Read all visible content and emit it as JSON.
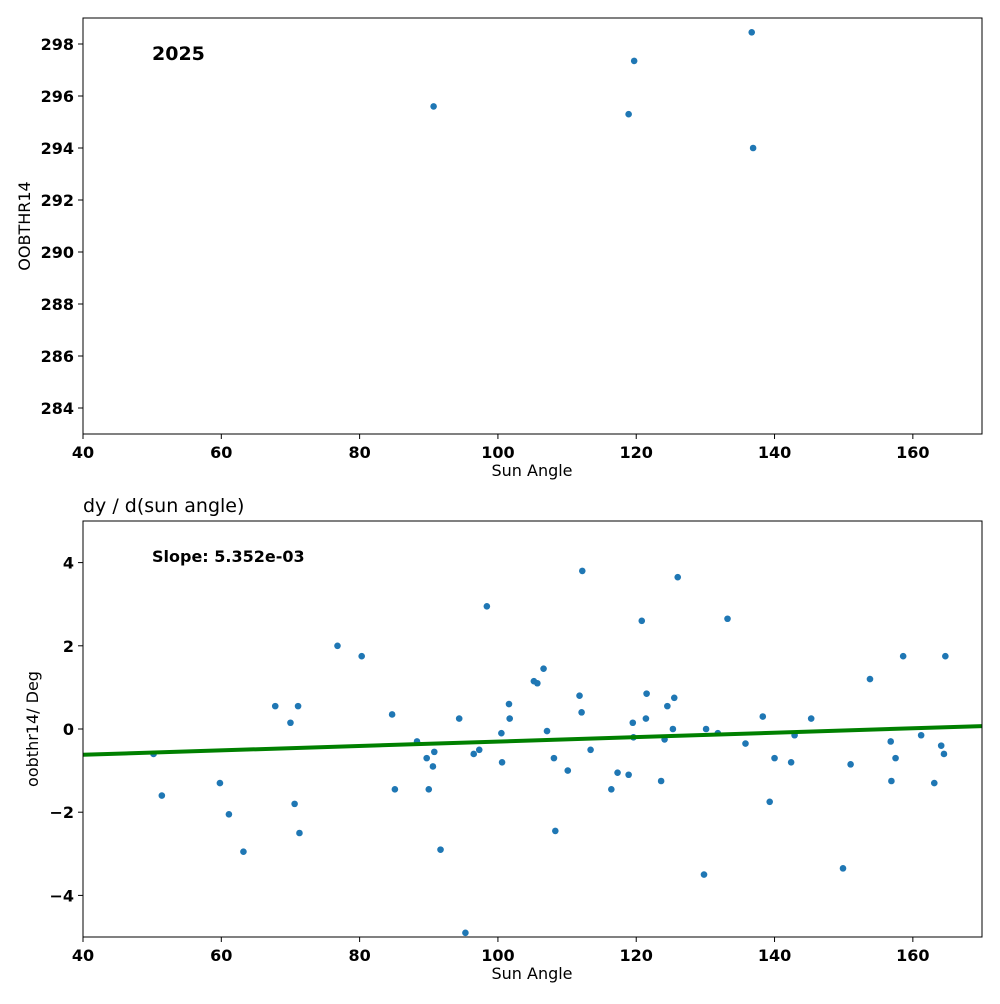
{
  "chart_data": [
    {
      "type": "scatter",
      "title": "",
      "xlabel": "Sun Angle",
      "ylabel": "OOBTHR14",
      "xlim": [
        40,
        170
      ],
      "ylim": [
        283,
        299
      ],
      "xticks": [
        40,
        60,
        80,
        100,
        120,
        140,
        160
      ],
      "yticks": [
        284,
        286,
        288,
        290,
        292,
        294,
        296,
        298
      ],
      "annotation": "2025",
      "marker_color": "#1f77b4",
      "points": [
        {
          "x": 90.7,
          "y": 295.6
        },
        {
          "x": 118.9,
          "y": 295.3
        },
        {
          "x": 119.7,
          "y": 297.35
        },
        {
          "x": 136.7,
          "y": 298.45
        },
        {
          "x": 136.9,
          "y": 294.0
        }
      ]
    },
    {
      "type": "scatter",
      "title": "dy / d(sun angle)",
      "xlabel": "Sun Angle",
      "ylabel": "oobthr14/ Deg",
      "xlim": [
        40,
        170
      ],
      "ylim": [
        -5,
        5
      ],
      "xticks": [
        40,
        60,
        80,
        100,
        120,
        140,
        160
      ],
      "yticks": [
        -4,
        -2,
        0,
        2,
        4
      ],
      "annotation": "Slope: 5.352e-03",
      "marker_color": "#1f77b4",
      "fit_line": {
        "color": "#008000",
        "x": [
          40,
          170
        ],
        "y": [
          -0.62,
          0.07
        ]
      },
      "points": [
        {
          "x": 50.2,
          "y": -0.6
        },
        {
          "x": 51.4,
          "y": -1.6
        },
        {
          "x": 59.8,
          "y": -1.3
        },
        {
          "x": 61.1,
          "y": -2.05
        },
        {
          "x": 63.2,
          "y": -2.95
        },
        {
          "x": 67.8,
          "y": 0.55
        },
        {
          "x": 70.0,
          "y": 0.15
        },
        {
          "x": 70.6,
          "y": -1.8
        },
        {
          "x": 71.1,
          "y": 0.55
        },
        {
          "x": 71.3,
          "y": -2.5
        },
        {
          "x": 76.8,
          "y": 2.0
        },
        {
          "x": 80.3,
          "y": 1.75
        },
        {
          "x": 84.7,
          "y": 0.35
        },
        {
          "x": 85.1,
          "y": -1.45
        },
        {
          "x": 88.3,
          "y": -0.3
        },
        {
          "x": 89.7,
          "y": -0.7
        },
        {
          "x": 90.0,
          "y": -1.45
        },
        {
          "x": 90.6,
          "y": -0.9
        },
        {
          "x": 90.8,
          "y": -0.55
        },
        {
          "x": 91.7,
          "y": -2.9
        },
        {
          "x": 94.4,
          "y": 0.25
        },
        {
          "x": 95.3,
          "y": -4.9
        },
        {
          "x": 96.5,
          "y": -0.6
        },
        {
          "x": 97.3,
          "y": -0.5
        },
        {
          "x": 98.4,
          "y": 2.95
        },
        {
          "x": 100.5,
          "y": -0.1
        },
        {
          "x": 100.6,
          "y": -0.8
        },
        {
          "x": 101.6,
          "y": 0.6
        },
        {
          "x": 101.7,
          "y": 0.25
        },
        {
          "x": 105.2,
          "y": 1.15
        },
        {
          "x": 105.7,
          "y": 1.1
        },
        {
          "x": 106.6,
          "y": 1.45
        },
        {
          "x": 107.1,
          "y": -0.05
        },
        {
          "x": 108.1,
          "y": -0.7
        },
        {
          "x": 108.3,
          "y": -2.45
        },
        {
          "x": 110.1,
          "y": -1.0
        },
        {
          "x": 111.8,
          "y": 0.8
        },
        {
          "x": 112.1,
          "y": 0.4
        },
        {
          "x": 112.2,
          "y": 3.8
        },
        {
          "x": 113.4,
          "y": -0.5
        },
        {
          "x": 116.4,
          "y": -1.45
        },
        {
          "x": 117.3,
          "y": -1.05
        },
        {
          "x": 118.9,
          "y": -1.1
        },
        {
          "x": 119.5,
          "y": 0.15
        },
        {
          "x": 119.6,
          "y": -0.2
        },
        {
          "x": 120.8,
          "y": 2.6
        },
        {
          "x": 121.4,
          "y": 0.25
        },
        {
          "x": 121.5,
          "y": 0.85
        },
        {
          "x": 123.6,
          "y": -1.25
        },
        {
          "x": 124.1,
          "y": -0.25
        },
        {
          "x": 124.5,
          "y": 0.55
        },
        {
          "x": 125.3,
          "y": 0.0
        },
        {
          "x": 125.5,
          "y": 0.75
        },
        {
          "x": 126.0,
          "y": 3.65
        },
        {
          "x": 129.8,
          "y": -3.5
        },
        {
          "x": 130.1,
          "y": 0.0
        },
        {
          "x": 131.8,
          "y": -0.1
        },
        {
          "x": 133.2,
          "y": 2.65
        },
        {
          "x": 135.8,
          "y": -0.35
        },
        {
          "x": 138.3,
          "y": 0.3
        },
        {
          "x": 139.3,
          "y": -1.75
        },
        {
          "x": 140.0,
          "y": -0.7
        },
        {
          "x": 142.4,
          "y": -0.8
        },
        {
          "x": 142.9,
          "y": -0.15
        },
        {
          "x": 145.3,
          "y": 0.25
        },
        {
          "x": 149.9,
          "y": -3.35
        },
        {
          "x": 151.0,
          "y": -0.85
        },
        {
          "x": 153.8,
          "y": 1.2
        },
        {
          "x": 156.8,
          "y": -0.3
        },
        {
          "x": 156.9,
          "y": -1.25
        },
        {
          "x": 157.5,
          "y": -0.7
        },
        {
          "x": 158.6,
          "y": 1.75
        },
        {
          "x": 161.2,
          "y": -0.15
        },
        {
          "x": 163.1,
          "y": -1.3
        },
        {
          "x": 164.1,
          "y": -0.4
        },
        {
          "x": 164.5,
          "y": -0.6
        },
        {
          "x": 164.7,
          "y": 1.75
        }
      ]
    }
  ]
}
